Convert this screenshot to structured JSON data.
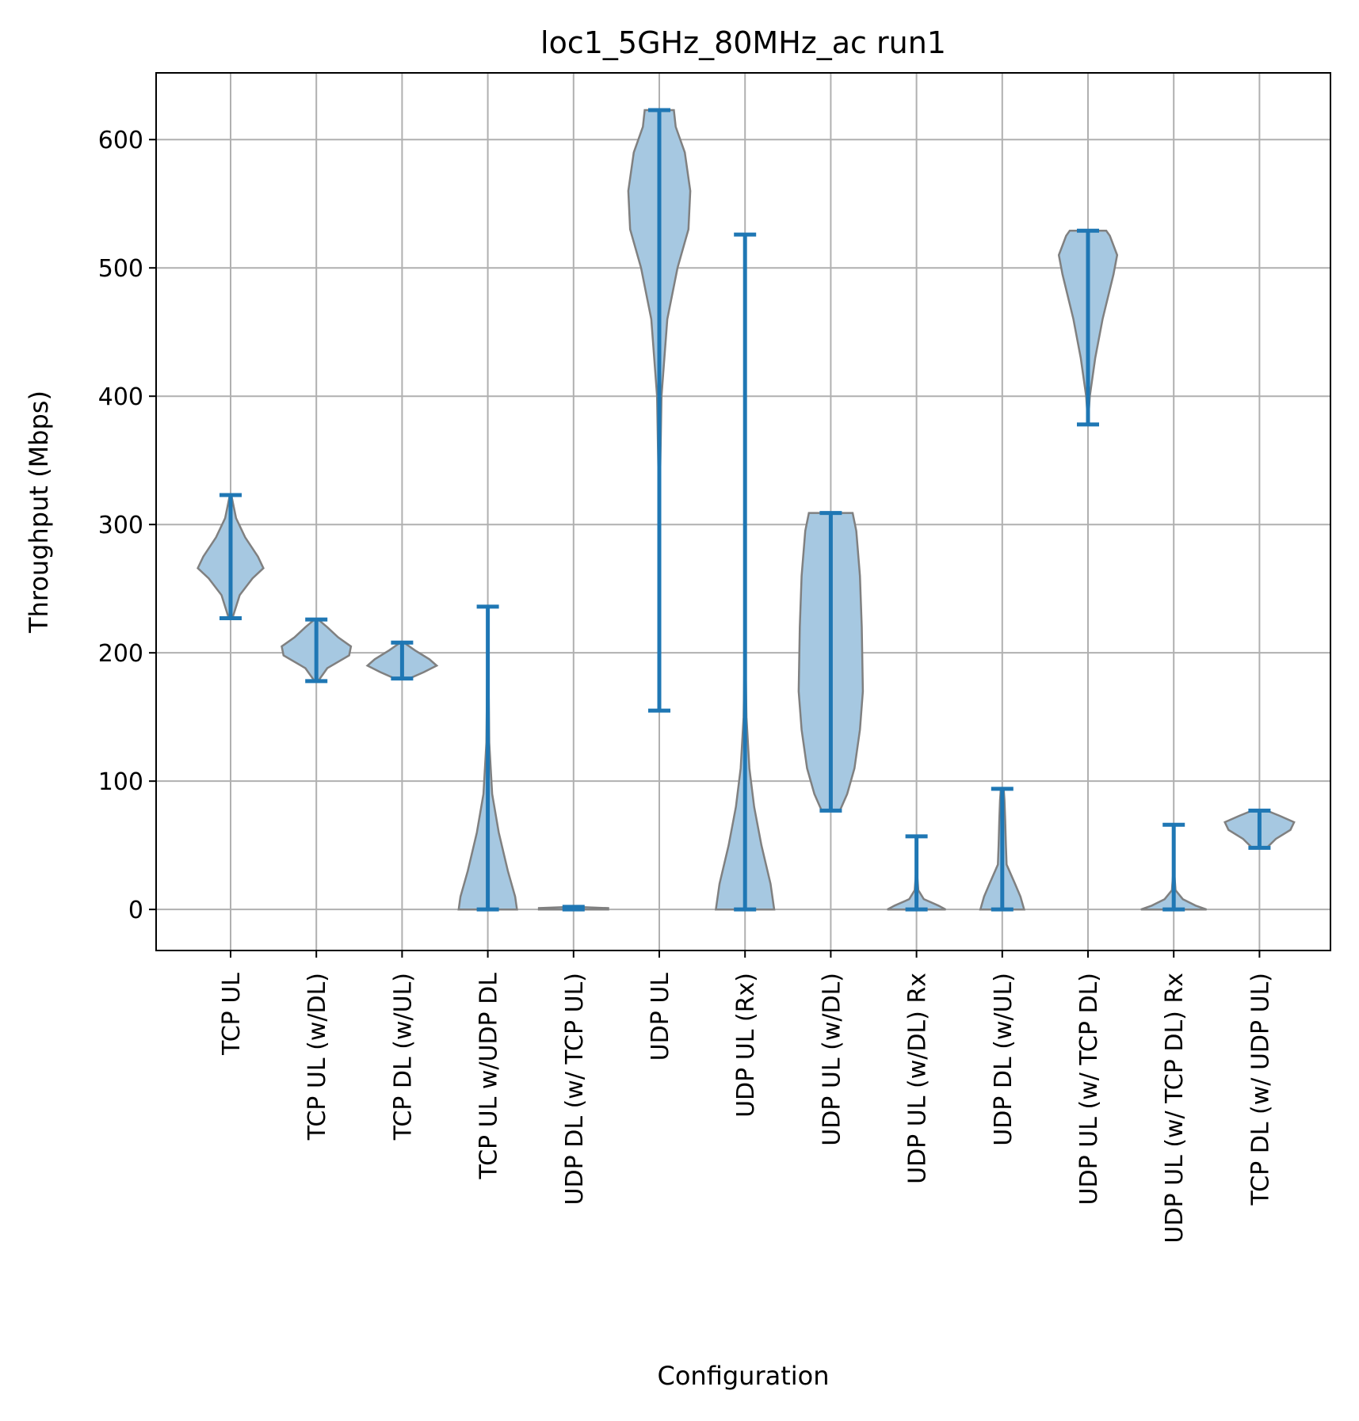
{
  "chart_data": {
    "type": "violin",
    "title": "loc1_5GHz_80MHz_ac run1",
    "xlabel": "Configuration",
    "ylabel": "Throughput (Mbps)",
    "ylim": [
      -32,
      652
    ],
    "yticks": [
      0,
      100,
      200,
      300,
      400,
      500,
      600
    ],
    "grid": true,
    "colors": {
      "body_fill": "#a6c8e1",
      "body_edge": "#808080",
      "range_line": "#1f77b4"
    },
    "categories": [
      "TCP  UL",
      "TCP UL (w/DL)",
      "TCP DL (w/UL)",
      "TCP  UL w/UDP DL",
      "UDP DL (w/ TCP UL)",
      "UDP  UL",
      "UDP  UL (Rx)",
      "UDP UL (w/DL)",
      "UDP UL (w/DL) Rx",
      "UDP DL (w/UL)",
      "UDP UL (w/ TCP DL)",
      "UDP UL (w/ TCP DL) Rx",
      "TCP DL (w/ UDP UL)"
    ],
    "series": [
      {
        "min": 227,
        "max": 323,
        "profile": [
          [
            227,
            0.05
          ],
          [
            245,
            0.25
          ],
          [
            258,
            0.6
          ],
          [
            266,
            0.9
          ],
          [
            275,
            0.75
          ],
          [
            290,
            0.4
          ],
          [
            305,
            0.15
          ],
          [
            323,
            0.02
          ]
        ]
      },
      {
        "min": 178,
        "max": 226,
        "profile": [
          [
            178,
            0.05
          ],
          [
            188,
            0.3
          ],
          [
            198,
            0.9
          ],
          [
            205,
            0.95
          ],
          [
            212,
            0.6
          ],
          [
            220,
            0.3
          ],
          [
            226,
            0.05
          ]
        ]
      },
      {
        "min": 180,
        "max": 208,
        "profile": [
          [
            180,
            0.2
          ],
          [
            185,
            0.6
          ],
          [
            190,
            0.95
          ],
          [
            195,
            0.75
          ],
          [
            202,
            0.35
          ],
          [
            208,
            0.05
          ]
        ]
      },
      {
        "min": 0,
        "max": 236,
        "profile": [
          [
            0,
            0.8
          ],
          [
            10,
            0.75
          ],
          [
            30,
            0.55
          ],
          [
            60,
            0.3
          ],
          [
            90,
            0.12
          ],
          [
            130,
            0.04
          ],
          [
            180,
            0.02
          ],
          [
            236,
            0.01
          ]
        ]
      },
      {
        "min": 0,
        "max": 2,
        "profile": [
          [
            0,
            0.95
          ],
          [
            1,
            0.95
          ],
          [
            2,
            0.05
          ]
        ]
      },
      {
        "min": 155,
        "max": 623,
        "profile": [
          [
            155,
            0.0
          ],
          [
            300,
            0.0
          ],
          [
            400,
            0.06
          ],
          [
            460,
            0.22
          ],
          [
            500,
            0.5
          ],
          [
            530,
            0.8
          ],
          [
            560,
            0.85
          ],
          [
            590,
            0.7
          ],
          [
            610,
            0.45
          ],
          [
            623,
            0.4
          ]
        ]
      },
      {
        "min": 0,
        "max": 526,
        "profile": [
          [
            0,
            0.8
          ],
          [
            20,
            0.7
          ],
          [
            50,
            0.45
          ],
          [
            80,
            0.25
          ],
          [
            110,
            0.12
          ],
          [
            150,
            0.04
          ],
          [
            200,
            0.01
          ],
          [
            300,
            0.0
          ],
          [
            526,
            0.0
          ]
        ]
      },
      {
        "min": 77,
        "max": 309,
        "profile": [
          [
            77,
            0.25
          ],
          [
            90,
            0.45
          ],
          [
            110,
            0.65
          ],
          [
            140,
            0.8
          ],
          [
            170,
            0.88
          ],
          [
            220,
            0.85
          ],
          [
            260,
            0.8
          ],
          [
            295,
            0.7
          ],
          [
            309,
            0.6
          ]
        ]
      },
      {
        "min": 0,
        "max": 57,
        "profile": [
          [
            0,
            0.8
          ],
          [
            3,
            0.6
          ],
          [
            8,
            0.2
          ],
          [
            15,
            0.05
          ],
          [
            30,
            0.01
          ],
          [
            57,
            0.0
          ]
        ]
      },
      {
        "min": 0,
        "max": 94,
        "profile": [
          [
            0,
            0.6
          ],
          [
            10,
            0.5
          ],
          [
            20,
            0.35
          ],
          [
            35,
            0.12
          ],
          [
            50,
            0.1
          ],
          [
            70,
            0.08
          ],
          [
            85,
            0.06
          ],
          [
            94,
            0.04
          ]
        ]
      },
      {
        "min": 378,
        "max": 529,
        "profile": [
          [
            378,
            0.0
          ],
          [
            400,
            0.05
          ],
          [
            430,
            0.2
          ],
          [
            460,
            0.4
          ],
          [
            495,
            0.7
          ],
          [
            510,
            0.8
          ],
          [
            525,
            0.6
          ],
          [
            529,
            0.5
          ]
        ]
      },
      {
        "min": 0,
        "max": 66,
        "profile": [
          [
            0,
            0.9
          ],
          [
            3,
            0.6
          ],
          [
            8,
            0.25
          ],
          [
            15,
            0.05
          ],
          [
            30,
            0.01
          ],
          [
            66,
            0.0
          ]
        ]
      },
      {
        "min": 48,
        "max": 77,
        "profile": [
          [
            48,
            0.2
          ],
          [
            55,
            0.45
          ],
          [
            62,
            0.85
          ],
          [
            68,
            0.95
          ],
          [
            73,
            0.55
          ],
          [
            77,
            0.2
          ]
        ]
      }
    ]
  }
}
